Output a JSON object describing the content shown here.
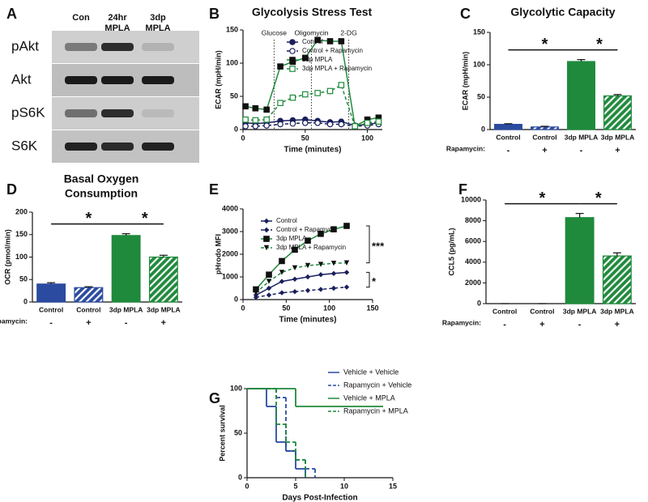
{
  "blot": {
    "panel": "A",
    "columns": [
      [
        "Con"
      ],
      [
        "24hr",
        "MPLA"
      ],
      [
        "3dp",
        "MPLA"
      ]
    ],
    "rows": [
      "pAkt",
      "Akt",
      "pS6K",
      "S6K"
    ]
  },
  "chart_data": [
    {
      "type": "line",
      "panel": "B",
      "title": "Glycolysis Stress Test",
      "xlabel": "Time (minutes)",
      "ylabel": "ECAR (mpH/min)",
      "x": [
        2,
        10,
        19,
        30,
        40,
        50,
        60,
        70,
        79,
        90,
        100,
        109
      ],
      "xlim": [
        0,
        112
      ],
      "xticks": [
        0,
        50,
        100
      ],
      "ylim": [
        0,
        150
      ],
      "yticks": [
        0,
        50,
        100,
        150
      ],
      "injections": [
        {
          "label": "Glucose",
          "x": 25
        },
        {
          "label": "Oligomycin",
          "x": 55
        },
        {
          "label": "2-DG",
          "x": 85
        }
      ],
      "legend": "top-right",
      "series": [
        {
          "name": "Control",
          "color": "#1a1f5c",
          "marker": "circle",
          "dash": false,
          "values": [
            10,
            9,
            10,
            13,
            14,
            15,
            13,
            11,
            12,
            6,
            8,
            10
          ]
        },
        {
          "name": "Control + Rapamycin",
          "color": "#1a1f5c",
          "marker": "circle-open",
          "dash": true,
          "values": [
            5,
            5,
            6,
            8,
            9,
            10,
            10,
            8,
            8,
            5,
            6,
            8
          ]
        },
        {
          "name": "3dp MPLA",
          "color": "#1f8a3c",
          "marker_color": "#111111",
          "marker": "square",
          "dash": false,
          "values": [
            35,
            32,
            30,
            95,
            102,
            108,
            135,
            133,
            133,
            5,
            15,
            18
          ]
        },
        {
          "name": "3dp MPLA + Rapamycin",
          "color": "#1f8a3c",
          "marker": "square-open",
          "dash": true,
          "values": [
            15,
            14,
            15,
            40,
            48,
            53,
            55,
            58,
            67,
            5,
            10,
            12
          ]
        }
      ]
    },
    {
      "type": "bar",
      "panel": "C",
      "title": "Glycolytic Capacity",
      "ylabel": "ECAR (mpH/min)",
      "categories": [
        "Control",
        "Control",
        "3dp MPLA",
        "3dp MPLA"
      ],
      "values": [
        8,
        4,
        105,
        52
      ],
      "errors": [
        1,
        1,
        3,
        2
      ],
      "colors": [
        "#2b4ba0",
        "#2b4ba0",
        "#1f8a3c",
        "#1f8a3c"
      ],
      "hatched": [
        false,
        true,
        false,
        true
      ],
      "ylim": [
        0,
        150
      ],
      "yticks": [
        0,
        50,
        100,
        150
      ],
      "treatment": {
        "label": "Rapamycin:",
        "values": [
          "-",
          "+",
          "-",
          "+"
        ]
      },
      "significance": [
        {
          "from": 0,
          "to": 2,
          "label": "*"
        },
        {
          "from": 2,
          "to": 3,
          "label": "*"
        }
      ]
    },
    {
      "type": "bar",
      "panel": "D",
      "title": [
        "Basal Oxygen",
        "Consumption"
      ],
      "ylabel": "OCR (pmol/min)",
      "categories": [
        "Control",
        "Control",
        "3dp MPLA",
        "3dp MPLA"
      ],
      "values": [
        40,
        32,
        148,
        100
      ],
      "errors": [
        3,
        2,
        4,
        4
      ],
      "colors": [
        "#2b4ba0",
        "#2b4ba0",
        "#1f8a3c",
        "#1f8a3c"
      ],
      "hatched": [
        false,
        true,
        false,
        true
      ],
      "ylim": [
        0,
        200
      ],
      "yticks": [
        0,
        50,
        100,
        150,
        200
      ],
      "treatment": {
        "label": "Rapamycin:",
        "values": [
          "-",
          "+",
          "-",
          "+"
        ]
      },
      "significance": [
        {
          "from": 0,
          "to": 2,
          "label": "*"
        },
        {
          "from": 2,
          "to": 3,
          "label": "*"
        }
      ]
    },
    {
      "type": "line",
      "panel": "E",
      "xlabel": "Time (minutes)",
      "ylabel": "pHrodo MFI",
      "x": [
        15,
        30,
        45,
        60,
        75,
        90,
        105,
        120
      ],
      "xlim": [
        0,
        150
      ],
      "xticks": [
        0,
        50,
        100,
        150
      ],
      "ylim": [
        0,
        4000
      ],
      "yticks": [
        0,
        1000,
        2000,
        3000,
        4000
      ],
      "legend": "top-left",
      "series": [
        {
          "name": "Control",
          "color": "#1a1f5c",
          "marker": "diamond",
          "dash": false,
          "values": [
            200,
            500,
            800,
            900,
            1000,
            1100,
            1150,
            1200
          ]
        },
        {
          "name": "Control + Rapamycin",
          "color": "#1a1f5c",
          "marker": "diamond",
          "dash": true,
          "values": [
            100,
            200,
            300,
            350,
            400,
            450,
            500,
            550
          ]
        },
        {
          "name": "3dp MPLA",
          "color": "#1f8a3c",
          "marker_color": "#111111",
          "marker": "square",
          "dash": false,
          "values": [
            450,
            1100,
            1700,
            2200,
            2600,
            2900,
            3100,
            3250
          ]
        },
        {
          "name": "3dp MPLA + Rapamycin",
          "color": "#1f8a3c",
          "marker_color": "#111111",
          "marker": "triangle",
          "dash": true,
          "values": [
            300,
            800,
            1200,
            1400,
            1500,
            1550,
            1600,
            1620
          ]
        }
      ],
      "significance": [
        {
          "series": [
            2,
            3
          ],
          "label": "***"
        },
        {
          "series": [
            0,
            1
          ],
          "label": "*"
        }
      ]
    },
    {
      "type": "bar",
      "panel": "F",
      "ylabel": "CCL5 (pg/mL)",
      "categories": [
        "Control",
        "Control",
        "3dp MPLA",
        "3dp MPLA"
      ],
      "values": [
        0,
        0,
        8300,
        4600
      ],
      "errors": [
        0,
        0,
        400,
        300
      ],
      "colors": [
        "#2b4ba0",
        "#2b4ba0",
        "#1f8a3c",
        "#1f8a3c"
      ],
      "hatched": [
        false,
        true,
        false,
        true
      ],
      "ylim": [
        0,
        10000
      ],
      "yticks": [
        0,
        2000,
        4000,
        6000,
        8000,
        10000
      ],
      "treatment": {
        "label": "Rapamycin:",
        "values": [
          "-",
          "+",
          "-",
          "+"
        ]
      },
      "significance": [
        {
          "from": 0,
          "to": 2,
          "label": "*"
        },
        {
          "from": 2,
          "to": 3,
          "label": "*"
        }
      ]
    },
    {
      "type": "survival",
      "panel": "G",
      "xlabel": "Days Post-Infection",
      "ylabel": "Percent survival",
      "xlim": [
        0,
        15
      ],
      "xticks": [
        0,
        5,
        10,
        15
      ],
      "ylim": [
        0,
        100
      ],
      "yticks": [
        0,
        50,
        100
      ],
      "legend": "top-right",
      "series": [
        {
          "name": "Vehicle + Vehicle",
          "color": "#2b4ba0",
          "dash": false,
          "x": [
            0,
            2,
            3,
            4,
            5,
            6
          ],
          "values": [
            100,
            80,
            40,
            30,
            10,
            0
          ]
        },
        {
          "name": "Rapamycin + Vehicle",
          "color": "#2b4ba0",
          "dash": true,
          "x": [
            0,
            3,
            4,
            5,
            6,
            7
          ],
          "values": [
            100,
            90,
            30,
            20,
            10,
            0
          ]
        },
        {
          "name": "Vehicle + MPLA",
          "color": "#1f8a3c",
          "dash": false,
          "x": [
            0,
            5,
            14
          ],
          "values": [
            100,
            80,
            80
          ]
        },
        {
          "name": "Rapamycin + MPLA",
          "color": "#1f8a3c",
          "dash": true,
          "x": [
            0,
            3,
            4,
            5,
            6
          ],
          "values": [
            100,
            60,
            40,
            20,
            0
          ]
        }
      ]
    }
  ]
}
